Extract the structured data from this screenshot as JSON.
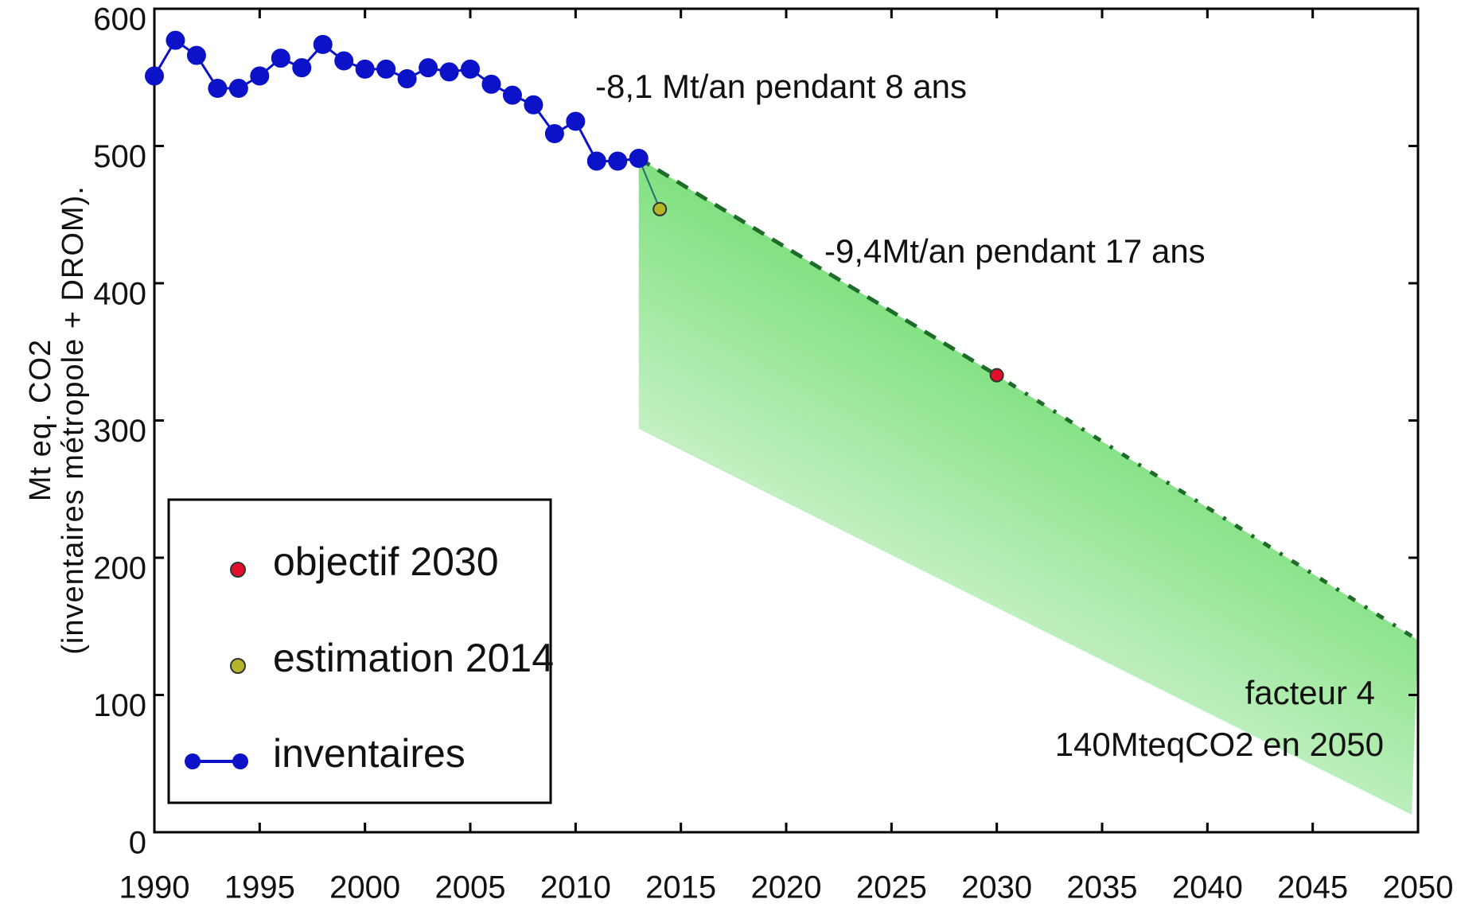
{
  "chart_data": {
    "type": "line",
    "y_label_lines": [
      "Mt eq. CO2",
      "(inventaires métropole + DROM)."
    ],
    "annotations": [
      "-8,1 Mt/an pendant 8 ans",
      "-9,4Mt/an pendant 17 ans",
      "facteur 4",
      "140MteqCO2 en 2050"
    ],
    "x": [
      1990,
      1991,
      1992,
      1993,
      1994,
      1995,
      1996,
      1997,
      1998,
      1999,
      2000,
      2001,
      2002,
      2003,
      2004,
      2005,
      2006,
      2007,
      2008,
      2009,
      2010,
      2011,
      2012,
      2013
    ],
    "series": [
      {
        "name": "inventaires",
        "color": "#0b12c8",
        "values": [
          551,
          577,
          566,
          542,
          542,
          551,
          564,
          557,
          574,
          562,
          556,
          556,
          549,
          557,
          554,
          556,
          545,
          537,
          530,
          509,
          518,
          489,
          489,
          491
        ]
      },
      {
        "name": "estimation 2014",
        "color": "#b5b52a",
        "x": [
          2014
        ],
        "values": [
          454
        ]
      },
      {
        "name": "objectif 2030",
        "color": "#e0102a",
        "x": [
          2030
        ],
        "values": [
          333
        ]
      }
    ],
    "trajectory": {
      "color": "#1f6b2a",
      "x": [
        2013,
        2030,
        2050
      ],
      "values": [
        491,
        333,
        140
      ]
    },
    "area_color": "#7ee07e",
    "xlim": [
      1990,
      2050
    ],
    "ylim": [
      0,
      600
    ],
    "xticks": [
      1990,
      1995,
      2000,
      2005,
      2010,
      2015,
      2020,
      2025,
      2030,
      2035,
      2040,
      2045,
      2050
    ],
    "yticks": [
      0,
      100,
      200,
      300,
      400,
      500,
      600
    ],
    "legend": "lower left"
  }
}
